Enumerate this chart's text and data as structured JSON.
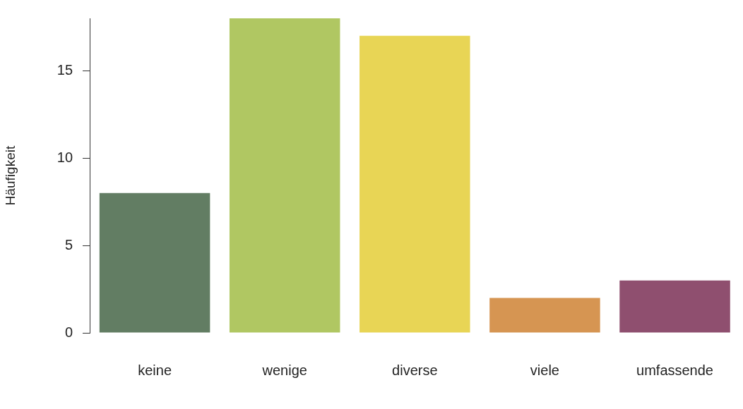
{
  "chart_data": {
    "type": "bar",
    "ylabel": "Häufigkeit",
    "categories": [
      "keine",
      "wenige",
      "diverse",
      "viele",
      "umfassende"
    ],
    "values": [
      8,
      18,
      17,
      2,
      3
    ],
    "colors": [
      "#627d63",
      "#b0c762",
      "#e8d555",
      "#d69552",
      "#8f4f6f"
    ],
    "ylim": [
      0,
      18
    ],
    "yticks": [
      0,
      5,
      10,
      15
    ],
    "grid": false,
    "legend": false
  }
}
